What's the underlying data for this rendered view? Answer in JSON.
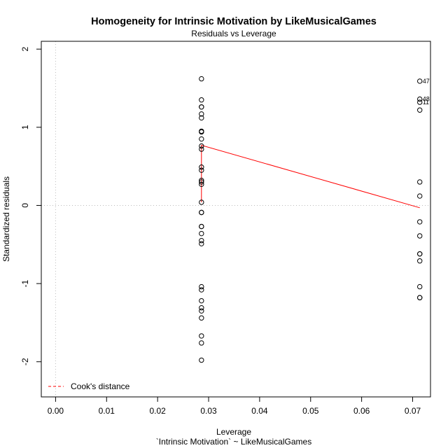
{
  "chart_data": {
    "type": "scatter",
    "title": "Homogeneity for Intrinsic Motivation by LikeMusicalGames",
    "subtitle": "Residuals vs Leverage",
    "xlabel": "Leverage",
    "xlabel2": "`Intrinsic Motivation` ~ LikeMusicalGames",
    "ylabel": "Standardized residuals",
    "xlim": [
      -0.0028,
      0.0735
    ],
    "ylim": [
      -2.45,
      2.1
    ],
    "x_ticks": [
      0.0,
      0.01,
      0.02,
      0.03,
      0.04,
      0.05,
      0.06,
      0.07
    ],
    "x_tick_labels": [
      "0.00",
      "0.01",
      "0.02",
      "0.03",
      "0.04",
      "0.05",
      "0.06",
      "0.07"
    ],
    "y_ticks": [
      -2,
      -1,
      0,
      1,
      2
    ],
    "y_tick_labels": [
      "-2",
      "-1",
      "0",
      "1",
      "2"
    ],
    "reference_lines": {
      "x": 0,
      "y": 0,
      "style": "dotted",
      "color": "#bbbbbb"
    },
    "points": [
      {
        "x": 0.0286,
        "y": 1.62
      },
      {
        "x": 0.0286,
        "y": 1.35
      },
      {
        "x": 0.0286,
        "y": 1.26
      },
      {
        "x": 0.0286,
        "y": 1.26
      },
      {
        "x": 0.0286,
        "y": 1.17
      },
      {
        "x": 0.0286,
        "y": 1.12
      },
      {
        "x": 0.0286,
        "y": 0.95
      },
      {
        "x": 0.0286,
        "y": 0.94
      },
      {
        "x": 0.0286,
        "y": 0.85
      },
      {
        "x": 0.0286,
        "y": 0.76
      },
      {
        "x": 0.0286,
        "y": 0.72
      },
      {
        "x": 0.0286,
        "y": 0.49
      },
      {
        "x": 0.0286,
        "y": 0.45
      },
      {
        "x": 0.0286,
        "y": 0.32
      },
      {
        "x": 0.0286,
        "y": 0.3
      },
      {
        "x": 0.0286,
        "y": 0.27
      },
      {
        "x": 0.0286,
        "y": 0.04
      },
      {
        "x": 0.0286,
        "y": -0.09
      },
      {
        "x": 0.0286,
        "y": -0.09
      },
      {
        "x": 0.0286,
        "y": -0.27
      },
      {
        "x": 0.0286,
        "y": -0.27
      },
      {
        "x": 0.0286,
        "y": -0.36
      },
      {
        "x": 0.0286,
        "y": -0.45
      },
      {
        "x": 0.0286,
        "y": -0.49
      },
      {
        "x": 0.0286,
        "y": -1.04
      },
      {
        "x": 0.0286,
        "y": -1.08
      },
      {
        "x": 0.0286,
        "y": -1.22
      },
      {
        "x": 0.0286,
        "y": -1.31
      },
      {
        "x": 0.0286,
        "y": -1.35
      },
      {
        "x": 0.0286,
        "y": -1.44
      },
      {
        "x": 0.0286,
        "y": -1.67
      },
      {
        "x": 0.0286,
        "y": -1.76
      },
      {
        "x": 0.0286,
        "y": -1.98
      },
      {
        "x": 0.0714,
        "y": 1.59,
        "label": "47"
      },
      {
        "x": 0.0714,
        "y": 1.36,
        "label": "48"
      },
      {
        "x": 0.0714,
        "y": 1.32,
        "label": "11"
      },
      {
        "x": 0.0714,
        "y": 1.22
      },
      {
        "x": 0.0714,
        "y": 0.3
      },
      {
        "x": 0.0714,
        "y": 0.12
      },
      {
        "x": 0.0714,
        "y": -0.21
      },
      {
        "x": 0.0714,
        "y": -0.39
      },
      {
        "x": 0.0714,
        "y": -0.62
      },
      {
        "x": 0.0714,
        "y": -0.62
      },
      {
        "x": 0.0714,
        "y": -0.71
      },
      {
        "x": 0.0714,
        "y": -1.04
      },
      {
        "x": 0.0714,
        "y": -1.18
      },
      {
        "x": 0.0714,
        "y": -1.18
      }
    ],
    "smoother": {
      "color": "#ff0000",
      "points": [
        {
          "x": 0.0286,
          "y": 0.04
        },
        {
          "x": 0.0286,
          "y": 0.72
        },
        {
          "x": 0.0286,
          "y": 0.77
        },
        {
          "x": 0.0714,
          "y": -0.03
        }
      ]
    },
    "legend": {
      "position": "bottom-left",
      "label": "Cook's distance",
      "color": "#ff0000",
      "style": "dashed"
    }
  }
}
